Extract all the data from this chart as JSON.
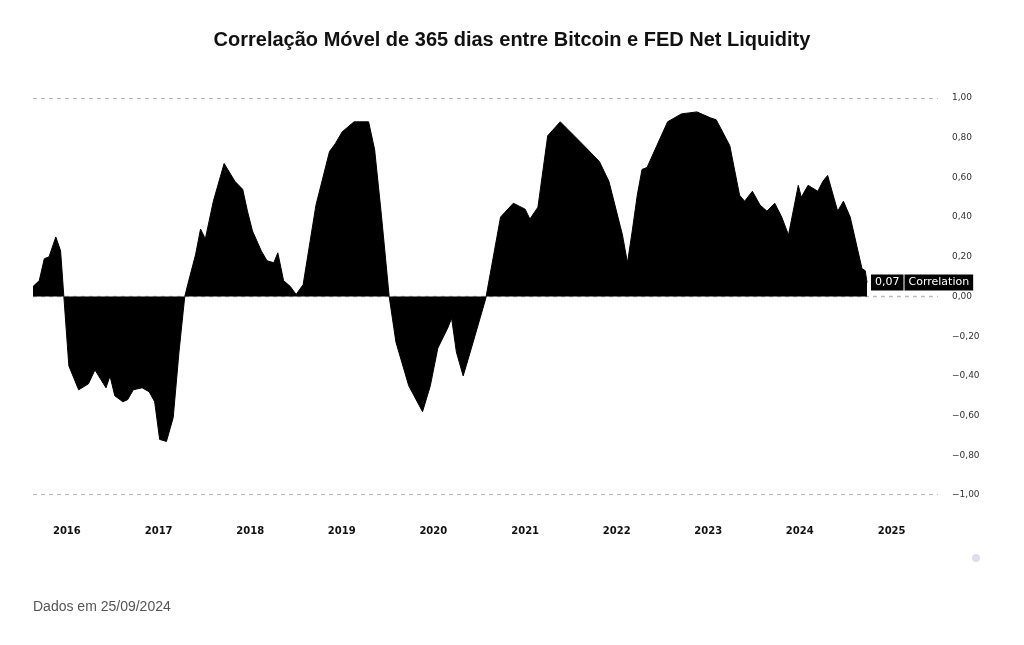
{
  "chart_data": {
    "type": "area",
    "title": "Correlação Móvel de 365 dias entre Bitcoin e FED Net Liquidity",
    "annotations": [
      "Dados em 25/09/2024"
    ],
    "x": [
      "2015-08-19",
      "2015-09-13",
      "2015-10-03",
      "2015-10-22",
      "2015-11-18",
      "2015-12-07",
      "2015-12-20",
      "2016-01-09",
      "2016-02-17",
      "2016-03-27",
      "2016-04-22",
      "2016-06-05",
      "2016-06-21",
      "2016-07-10",
      "2016-08-11",
      "2016-08-30",
      "2016-09-22",
      "2016-10-27",
      "2016-11-24",
      "2016-12-16",
      "2017-01-05",
      "2017-02-01",
      "2017-02-28",
      "2017-03-23",
      "2017-04-15",
      "2017-05-01",
      "2017-05-28",
      "2017-06-17",
      "2017-07-06",
      "2017-08-07",
      "2017-09-19",
      "2017-11-01",
      "2017-12-02",
      "2017-12-21",
      "2018-01-10",
      "2018-02-14",
      "2018-03-09",
      "2018-04-05",
      "2018-04-21",
      "2018-05-14",
      "2018-06-10",
      "2018-07-03",
      "2018-07-31",
      "2018-09-20",
      "2018-11-13",
      "2018-12-06",
      "2019-01-03",
      "2019-02-19",
      "2019-04-18",
      "2019-05-12",
      "2019-06-08",
      "2019-07-09",
      "2019-08-05",
      "2019-09-25",
      "2019-11-19",
      "2019-12-20",
      "2020-01-19",
      "2020-02-27",
      "2020-03-14",
      "2020-04-02",
      "2020-04-29",
      "2020-06-03",
      "2020-07-28",
      "2020-09-25",
      "2020-11-15",
      "2021-01-01",
      "2021-01-20",
      "2021-02-21",
      "2021-04-01",
      "2021-05-21",
      "2021-08-08",
      "2021-10-24",
      "2021-12-01",
      "2022-01-24",
      "2022-02-13",
      "2022-03-04",
      "2022-03-24",
      "2022-04-12",
      "2022-05-02",
      "2022-06-10",
      "2022-07-23",
      "2022-09-16",
      "2022-11-17",
      "2023-01-10",
      "2023-02-02",
      "2023-03-28",
      "2023-05-06",
      "2023-05-26",
      "2023-06-26",
      "2023-07-27",
      "2023-08-23",
      "2023-09-23",
      "2023-10-21",
      "2023-11-17",
      "2023-12-26",
      "2024-01-07",
      "2024-02-03",
      "2024-03-13",
      "2024-04-02",
      "2024-04-21",
      "2024-05-31",
      "2024-06-23",
      "2024-07-20",
      "2024-09-05",
      "2024-09-18",
      "2024-09-25"
    ],
    "series": [
      {
        "name": "Correlation",
        "color": "#000000",
        "values": [
          0.05,
          0.08,
          0.19,
          0.2,
          0.3,
          0.23,
          0,
          -0.35,
          -0.47,
          -0.44,
          -0.37,
          -0.46,
          -0.4,
          -0.5,
          -0.53,
          -0.52,
          -0.47,
          -0.46,
          -0.48,
          -0.53,
          -0.72,
          -0.73,
          -0.61,
          -0.28,
          0,
          0.08,
          0.21,
          0.34,
          0.29,
          0.48,
          0.67,
          0.58,
          0.54,
          0.43,
          0.33,
          0.23,
          0.18,
          0.17,
          0.22,
          0.08,
          0.05,
          0.01,
          0.06,
          0.46,
          0.73,
          0.77,
          0.83,
          0.88,
          0.88,
          0.74,
          0.41,
          0,
          -0.23,
          -0.45,
          -0.58,
          -0.45,
          -0.26,
          -0.16,
          -0.11,
          -0.28,
          -0.4,
          -0.25,
          -0.01,
          0.4,
          0.47,
          0.44,
          0.39,
          0.45,
          0.81,
          0.88,
          0.78,
          0.68,
          0.58,
          0.31,
          0.17,
          0.33,
          0.51,
          0.64,
          0.65,
          0.76,
          0.88,
          0.92,
          0.93,
          0.9,
          0.89,
          0.76,
          0.51,
          0.48,
          0.53,
          0.46,
          0.43,
          0.47,
          0.4,
          0.31,
          0.56,
          0.5,
          0.56,
          0.53,
          0.58,
          0.61,
          0.43,
          0.48,
          0.4,
          0.14,
          0.13,
          0.07
        ],
        "value_labels": [
          null,
          null,
          null,
          null,
          null,
          null,
          null,
          null,
          null,
          null,
          null,
          null,
          null,
          null,
          null,
          null,
          null,
          null,
          null,
          null,
          null,
          null,
          null,
          null,
          null,
          null,
          null,
          null,
          null,
          null,
          null,
          null,
          null,
          null,
          null,
          null,
          null,
          null,
          null,
          null,
          null,
          null,
          null,
          null,
          null,
          null,
          null,
          null,
          null,
          null,
          null,
          null,
          null,
          null,
          null,
          null,
          null,
          null,
          null,
          null,
          null,
          null,
          null,
          null,
          null,
          null,
          null,
          null,
          null,
          null,
          null,
          null,
          null,
          null,
          null,
          null,
          null,
          null,
          null,
          null,
          null,
          null,
          null,
          null,
          null,
          null,
          null,
          null,
          null,
          null,
          null,
          null,
          null,
          null,
          null,
          null,
          null,
          null,
          null,
          null,
          null,
          null,
          null,
          null,
          null,
          "0,07"
        ]
      }
    ],
    "xlim": [
      "2015-08-19",
      "2025-07-05"
    ],
    "xticks": [
      "2016",
      "2017",
      "2018",
      "2019",
      "2020",
      "2021",
      "2022",
      "2023",
      "2024",
      "2025"
    ],
    "ylim": [
      -1,
      1
    ],
    "yticks": [
      {
        "value": -1,
        "label": "−1,00"
      },
      {
        "value": -0.8,
        "label": "−0,80"
      },
      {
        "value": -0.6,
        "label": "−0,60"
      },
      {
        "value": -0.4,
        "label": "−0,40"
      },
      {
        "value": -0.2,
        "label": "−0,20"
      },
      {
        "value": 0,
        "label": "0,00"
      },
      {
        "value": 0.2,
        "label": "0,20"
      },
      {
        "value": 0.4,
        "label": "0,40"
      },
      {
        "value": 0.6,
        "label": "0,60"
      },
      {
        "value": 0.8,
        "label": "0,80"
      },
      {
        "value": 1,
        "label": "1,00"
      }
    ],
    "grid": false,
    "legend": "right",
    "ref_lines": [
      {
        "axis": "y",
        "value": 0,
        "color": "#bbbbbb",
        "line_style": "dashed"
      }
    ]
  }
}
